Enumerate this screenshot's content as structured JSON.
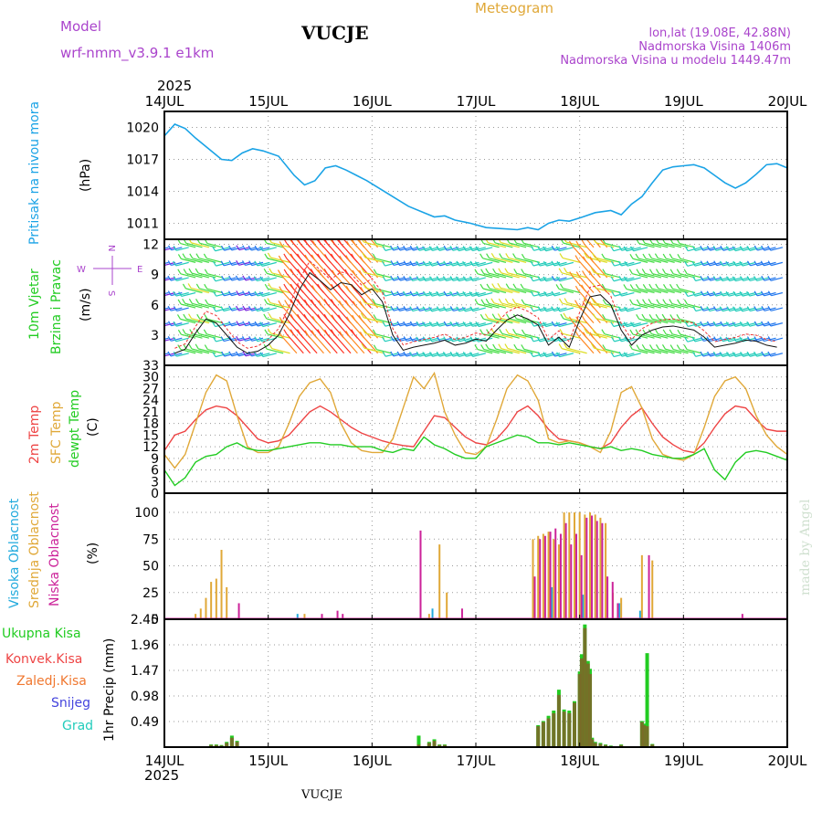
{
  "header": {
    "model_label": "Model",
    "model_name": "wrf-nmm_v3.9.1  e1km",
    "station": "VUCJE",
    "title": "Meteogram",
    "coords": "lon,lat (19.08E, 42.88N)",
    "elevation": "Nadmorska Visina 1406m",
    "model_elevation": "Nadmorska Visina u modelu 1449.47m",
    "year": "2025",
    "footer_station": "VUCJE",
    "credit": "made by Angel"
  },
  "colors": {
    "pressure": "#1aa3e6",
    "temp2m": "#ee4444",
    "sfc": "#e0a838",
    "dew": "#22cc22",
    "high": "#22aadd",
    "mid": "#e0a838",
    "low": "#cc2299",
    "purple": "#aa44cc",
    "snow": "#4444dd"
  },
  "x_axis": {
    "ticks": [
      "14JUL",
      "15JUL",
      "16JUL",
      "17JUL",
      "18JUL",
      "19JUL",
      "20JUL"
    ],
    "unit": "days from 14JUL 2025"
  },
  "panels": {
    "pressure": {
      "label": "Pritisak na nivou mora",
      "unit": "(hPa)",
      "ticks": [
        "1011",
        "1014",
        "1017",
        "1020"
      ]
    },
    "wind": {
      "label1": "10m Vjetar",
      "label2": "Brzina i Pravac",
      "unit": "(m/s)",
      "ticks": [
        "3",
        "6",
        "9",
        "12"
      ],
      "compass": {
        "n": "N",
        "s": "S",
        "w": "W",
        "e": "E"
      }
    },
    "temp": {
      "label1": "2m Temp",
      "label2": "SFC Temp",
      "label3": "dewpt Temp",
      "unit": "(C)",
      "ticks": [
        "0",
        "3",
        "6",
        "9",
        "12",
        "15",
        "18",
        "21",
        "24",
        "27",
        "30",
        "33"
      ]
    },
    "cloud": {
      "label1": "Visoka Oblacnost",
      "label2": "Srednja Oblacnost",
      "label3": "Niska Oblacnost",
      "unit": "(%)",
      "ticks": [
        "0",
        "25",
        "50",
        "75",
        "100"
      ]
    },
    "precip": {
      "labels": [
        "Ukupna Kisa",
        "Konvek.Kisa",
        "Zaledj.Kisa",
        "Snijeg",
        "Grad"
      ],
      "unit": "1hr Precip (mm)",
      "ticks": [
        "0.49",
        "0.98",
        "1.47",
        "1.96",
        "2.45"
      ]
    }
  },
  "chart_data": [
    {
      "type": "line",
      "title": "",
      "ylabel": "Pritisak na nivou mora (hPa)",
      "ylim": [
        1009.5,
        1021.5
      ],
      "series": [
        {
          "name": "Pritisak na nivou mora",
          "x": [
            0.0,
            0.1,
            0.2,
            0.3,
            0.45,
            0.55,
            0.65,
            0.75,
            0.85,
            0.95,
            1.1,
            1.25,
            1.35,
            1.45,
            1.55,
            1.65,
            1.75,
            1.85,
            1.95,
            2.05,
            2.2,
            2.35,
            2.5,
            2.6,
            2.7,
            2.8,
            2.95,
            3.1,
            3.25,
            3.4,
            3.5,
            3.6,
            3.7,
            3.8,
            3.9,
            4.0,
            4.15,
            4.3,
            4.4,
            4.5,
            4.6,
            4.7,
            4.8,
            4.9,
            5.0,
            5.1,
            5.2,
            5.3,
            5.4,
            5.5,
            5.6,
            5.7,
            5.8,
            5.9,
            6.0
          ],
          "y": [
            1019.2,
            1020.3,
            1019.9,
            1019.0,
            1017.8,
            1017.0,
            1016.9,
            1017.6,
            1018.0,
            1017.8,
            1017.3,
            1015.5,
            1014.6,
            1015.0,
            1016.2,
            1016.4,
            1016.0,
            1015.5,
            1015.0,
            1014.4,
            1013.5,
            1012.6,
            1012.0,
            1011.6,
            1011.7,
            1011.3,
            1011.0,
            1010.6,
            1010.5,
            1010.4,
            1010.6,
            1010.4,
            1011.0,
            1011.3,
            1011.2,
            1011.5,
            1012.0,
            1012.2,
            1011.8,
            1012.8,
            1013.5,
            1014.8,
            1016.0,
            1016.3,
            1016.4,
            1016.5,
            1016.2,
            1015.5,
            1014.8,
            1014.3,
            1014.8,
            1015.6,
            1016.5,
            1016.6,
            1016.2
          ]
        }
      ]
    },
    {
      "type": "line",
      "title": "",
      "ylabel": "10m Vjetar Brzina i Pravac (m/s)",
      "ylim": [
        0,
        12.5
      ],
      "series": [
        {
          "name": "10m Vjetar",
          "x": [
            0.1,
            0.2,
            0.3,
            0.4,
            0.5,
            0.6,
            0.7,
            0.8,
            0.9,
            1.0,
            1.1,
            1.2,
            1.3,
            1.4,
            1.5,
            1.6,
            1.7,
            1.8,
            1.9,
            2.0,
            2.1,
            2.2,
            2.3,
            2.4,
            2.5,
            2.6,
            2.7,
            2.8,
            2.9,
            3.0,
            3.1,
            3.2,
            3.3,
            3.4,
            3.5,
            3.6,
            3.7,
            3.8,
            3.9,
            4.0,
            4.1,
            4.2,
            4.3,
            4.4,
            4.5,
            4.6,
            4.7,
            4.8,
            4.9,
            5.0,
            5.1,
            5.2,
            5.3,
            5.4,
            5.5,
            5.6,
            5.7,
            5.8,
            5.9
          ],
          "y": [
            1.2,
            1.6,
            3.2,
            4.6,
            4.2,
            3.0,
            1.8,
            1.2,
            1.4,
            2.0,
            3.0,
            5.0,
            7.5,
            9.2,
            8.4,
            7.5,
            8.2,
            8.0,
            7.0,
            7.6,
            6.3,
            3.0,
            1.5,
            1.8,
            2.0,
            2.2,
            2.5,
            2.0,
            2.2,
            2.6,
            2.4,
            3.5,
            4.5,
            5.0,
            4.6,
            4.0,
            2.0,
            2.8,
            1.8,
            4.5,
            6.8,
            7.0,
            6.0,
            3.5,
            2.0,
            3.0,
            3.5,
            3.8,
            3.9,
            3.7,
            3.5,
            2.8,
            1.8,
            2.0,
            2.2,
            2.5,
            2.4,
            2.0,
            1.8
          ]
        }
      ]
    },
    {
      "type": "line",
      "title": "",
      "ylabel": "2m Temp / SFC Temp / dewpt Temp (C)",
      "ylim": [
        0,
        33
      ],
      "series": [
        {
          "name": "2m Temp",
          "x": [
            0.0,
            0.1,
            0.2,
            0.3,
            0.4,
            0.5,
            0.6,
            0.7,
            0.8,
            0.9,
            1.0,
            1.1,
            1.2,
            1.3,
            1.4,
            1.5,
            1.6,
            1.7,
            1.8,
            1.9,
            2.0,
            2.1,
            2.2,
            2.3,
            2.4,
            2.5,
            2.6,
            2.7,
            2.8,
            2.9,
            3.0,
            3.1,
            3.2,
            3.3,
            3.4,
            3.5,
            3.6,
            3.7,
            3.8,
            3.9,
            4.0,
            4.1,
            4.2,
            4.3,
            4.4,
            4.5,
            4.6,
            4.7,
            4.8,
            4.9,
            5.0,
            5.1,
            5.2,
            5.3,
            5.4,
            5.5,
            5.6,
            5.7,
            5.8,
            5.9,
            6.0
          ],
          "y": [
            11,
            15,
            16,
            19,
            21.5,
            22.5,
            22,
            20,
            17,
            14,
            13,
            13.5,
            15,
            18,
            21,
            22.5,
            21,
            19,
            17,
            15.5,
            14.5,
            13.5,
            12.8,
            12.3,
            12,
            16,
            20,
            19.5,
            17,
            14.5,
            13,
            12.5,
            14,
            17,
            21,
            22.5,
            20,
            16.5,
            14,
            13.5,
            13,
            12,
            11.5,
            13,
            17,
            20,
            22,
            18,
            14.5,
            12.5,
            11,
            10.5,
            13,
            17,
            20.5,
            22.5,
            22,
            19,
            16.5,
            16,
            16
          ]
        },
        {
          "name": "SFC Temp",
          "x": [
            0.0,
            0.1,
            0.2,
            0.3,
            0.4,
            0.5,
            0.6,
            0.7,
            0.8,
            0.9,
            1.0,
            1.1,
            1.2,
            1.3,
            1.4,
            1.5,
            1.6,
            1.7,
            1.8,
            1.9,
            2.0,
            2.1,
            2.2,
            2.3,
            2.4,
            2.5,
            2.6,
            2.7,
            2.8,
            2.9,
            3.0,
            3.1,
            3.2,
            3.3,
            3.4,
            3.5,
            3.6,
            3.7,
            3.8,
            3.9,
            4.0,
            4.1,
            4.2,
            4.3,
            4.4,
            4.5,
            4.6,
            4.7,
            4.8,
            4.9,
            5.0,
            5.1,
            5.2,
            5.3,
            5.4,
            5.5,
            5.6,
            5.7,
            5.8,
            5.9,
            6.0
          ],
          "y": [
            10,
            6.5,
            10,
            18,
            26,
            30.5,
            29,
            20,
            12,
            10.5,
            10.5,
            12,
            18,
            25,
            28.5,
            29.5,
            26,
            18,
            13,
            11,
            10.5,
            10.5,
            14,
            22,
            30,
            27,
            31,
            21,
            15,
            10.5,
            10,
            12,
            19,
            27,
            30.5,
            29,
            24,
            14,
            13,
            13.5,
            13,
            12,
            10.5,
            16,
            26,
            27.5,
            22,
            14,
            10,
            9,
            8.5,
            10,
            17,
            25,
            29,
            30,
            27,
            20,
            15,
            12,
            10
          ]
        },
        {
          "name": "dewpt Temp",
          "x": [
            0.0,
            0.1,
            0.2,
            0.3,
            0.4,
            0.5,
            0.6,
            0.7,
            0.8,
            0.9,
            1.0,
            1.1,
            1.2,
            1.3,
            1.4,
            1.5,
            1.6,
            1.7,
            1.8,
            1.9,
            2.0,
            2.1,
            2.2,
            2.3,
            2.4,
            2.5,
            2.6,
            2.7,
            2.8,
            2.9,
            3.0,
            3.1,
            3.2,
            3.3,
            3.4,
            3.5,
            3.6,
            3.7,
            3.8,
            3.9,
            4.0,
            4.1,
            4.2,
            4.3,
            4.4,
            4.5,
            4.6,
            4.7,
            4.8,
            4.9,
            5.0,
            5.1,
            5.2,
            5.3,
            5.4,
            5.5,
            5.6,
            5.7,
            5.8,
            5.9,
            6.0
          ],
          "y": [
            6,
            2,
            4,
            8,
            9.5,
            10,
            12,
            13,
            11.5,
            11,
            11,
            11.5,
            12,
            12.5,
            13,
            13,
            12.5,
            12.5,
            12,
            12,
            12,
            11,
            10.5,
            11.5,
            11,
            14.5,
            12.5,
            11.5,
            10,
            9,
            9,
            12,
            13,
            14,
            15,
            14.5,
            13,
            13,
            12.5,
            13,
            12.5,
            12,
            11.5,
            12,
            11,
            11.5,
            11,
            10,
            9.5,
            9,
            9,
            10,
            11.5,
            6,
            3.5,
            8,
            10.5,
            11,
            10.5,
            9.5,
            8.5
          ]
        }
      ]
    },
    {
      "type": "bar",
      "title": "",
      "ylabel": "Oblacnost (%)",
      "ylim": [
        0,
        100
      ],
      "series": [
        {
          "name": "Visoka Oblacnost",
          "x": [
            1.3,
            2.6,
            3.75,
            4.05,
            4.4,
            4.6
          ],
          "values": [
            5,
            10,
            30,
            23,
            15,
            8
          ]
        },
        {
          "name": "Srednja Oblacnost",
          "x": [
            0.3,
            0.35,
            0.4,
            0.45,
            0.5,
            0.55,
            0.6,
            1.35,
            2.55,
            2.65,
            2.72,
            3.55,
            3.6,
            3.65,
            3.7,
            3.75,
            3.8,
            3.85,
            3.9,
            3.95,
            4.0,
            4.05,
            4.1,
            4.15,
            4.2,
            4.25,
            4.32,
            4.4,
            4.6,
            4.7
          ],
          "values": [
            5,
            10,
            20,
            35,
            38,
            65,
            30,
            5,
            5,
            70,
            25,
            75,
            78,
            80,
            82,
            75,
            70,
            100,
            100,
            100,
            100,
            98,
            100,
            98,
            95,
            90,
            25,
            20,
            60,
            55
          ]
        },
        {
          "name": "Niska Oblacnost",
          "x": [
            0.7,
            1.5,
            1.65,
            1.7,
            2.45,
            2.85,
            3.55,
            3.6,
            3.65,
            3.7,
            3.75,
            3.8,
            3.85,
            3.9,
            3.95,
            4.0,
            4.05,
            4.1,
            4.15,
            4.2,
            4.25,
            4.3,
            4.35,
            4.65,
            5.55
          ],
          "values": [
            15,
            5,
            8,
            5,
            83,
            10,
            40,
            75,
            78,
            82,
            85,
            80,
            90,
            70,
            80,
            60,
            95,
            97,
            92,
            90,
            40,
            35,
            15,
            60,
            5
          ]
        }
      ]
    },
    {
      "type": "bar",
      "title": "",
      "ylabel": "1hr Precip (mm)",
      "ylim": [
        0,
        2.45
      ],
      "series": [
        {
          "name": "Ukupna Kisa",
          "x": [
            0.45,
            0.5,
            0.55,
            0.6,
            0.65,
            0.7,
            2.45,
            2.55,
            2.6,
            2.65,
            2.7,
            3.6,
            3.65,
            3.7,
            3.75,
            3.8,
            3.85,
            3.9,
            3.95,
            4.0,
            4.02,
            4.05,
            4.08,
            4.1,
            4.12,
            4.15,
            4.2,
            4.25,
            4.3,
            4.4,
            4.6,
            4.62,
            4.65,
            4.7
          ],
          "values": [
            0.05,
            0.05,
            0.04,
            0.1,
            0.22,
            0.12,
            0.22,
            0.1,
            0.15,
            0.05,
            0.05,
            0.42,
            0.5,
            0.6,
            0.7,
            1.1,
            0.72,
            0.7,
            0.88,
            1.45,
            1.78,
            2.35,
            1.65,
            1.5,
            0.18,
            0.1,
            0.08,
            0.05,
            0.03,
            0.05,
            0.5,
            0.45,
            1.8,
            0.06
          ]
        },
        {
          "name": "Konvek.Kisa",
          "x": [
            0.45,
            0.5,
            0.55,
            0.6,
            0.65,
            0.7,
            2.45,
            2.55,
            2.6,
            2.65,
            2.7,
            3.6,
            3.65,
            3.7,
            3.75,
            3.8,
            3.85,
            3.9,
            3.95,
            4.0,
            4.02,
            4.05,
            4.08,
            4.1,
            4.12,
            4.15,
            4.2,
            4.25,
            4.3,
            4.4,
            4.6,
            4.62,
            4.65,
            4.7
          ],
          "values": [
            0.04,
            0.04,
            0.03,
            0.08,
            0.18,
            0.1,
            0.05,
            0.08,
            0.12,
            0.04,
            0.04,
            0.4,
            0.48,
            0.55,
            0.65,
            1.0,
            0.68,
            0.65,
            0.85,
            1.4,
            1.7,
            2.28,
            1.6,
            1.4,
            0.15,
            0.08,
            0.06,
            0.04,
            0.02,
            0.04,
            0.48,
            0.42,
            0.4,
            0.05
          ]
        },
        {
          "name": "Zaledj.Kisa",
          "x": [],
          "values": []
        },
        {
          "name": "Snijeg",
          "x": [],
          "values": []
        },
        {
          "name": "Grad",
          "x": [],
          "values": []
        }
      ]
    }
  ]
}
